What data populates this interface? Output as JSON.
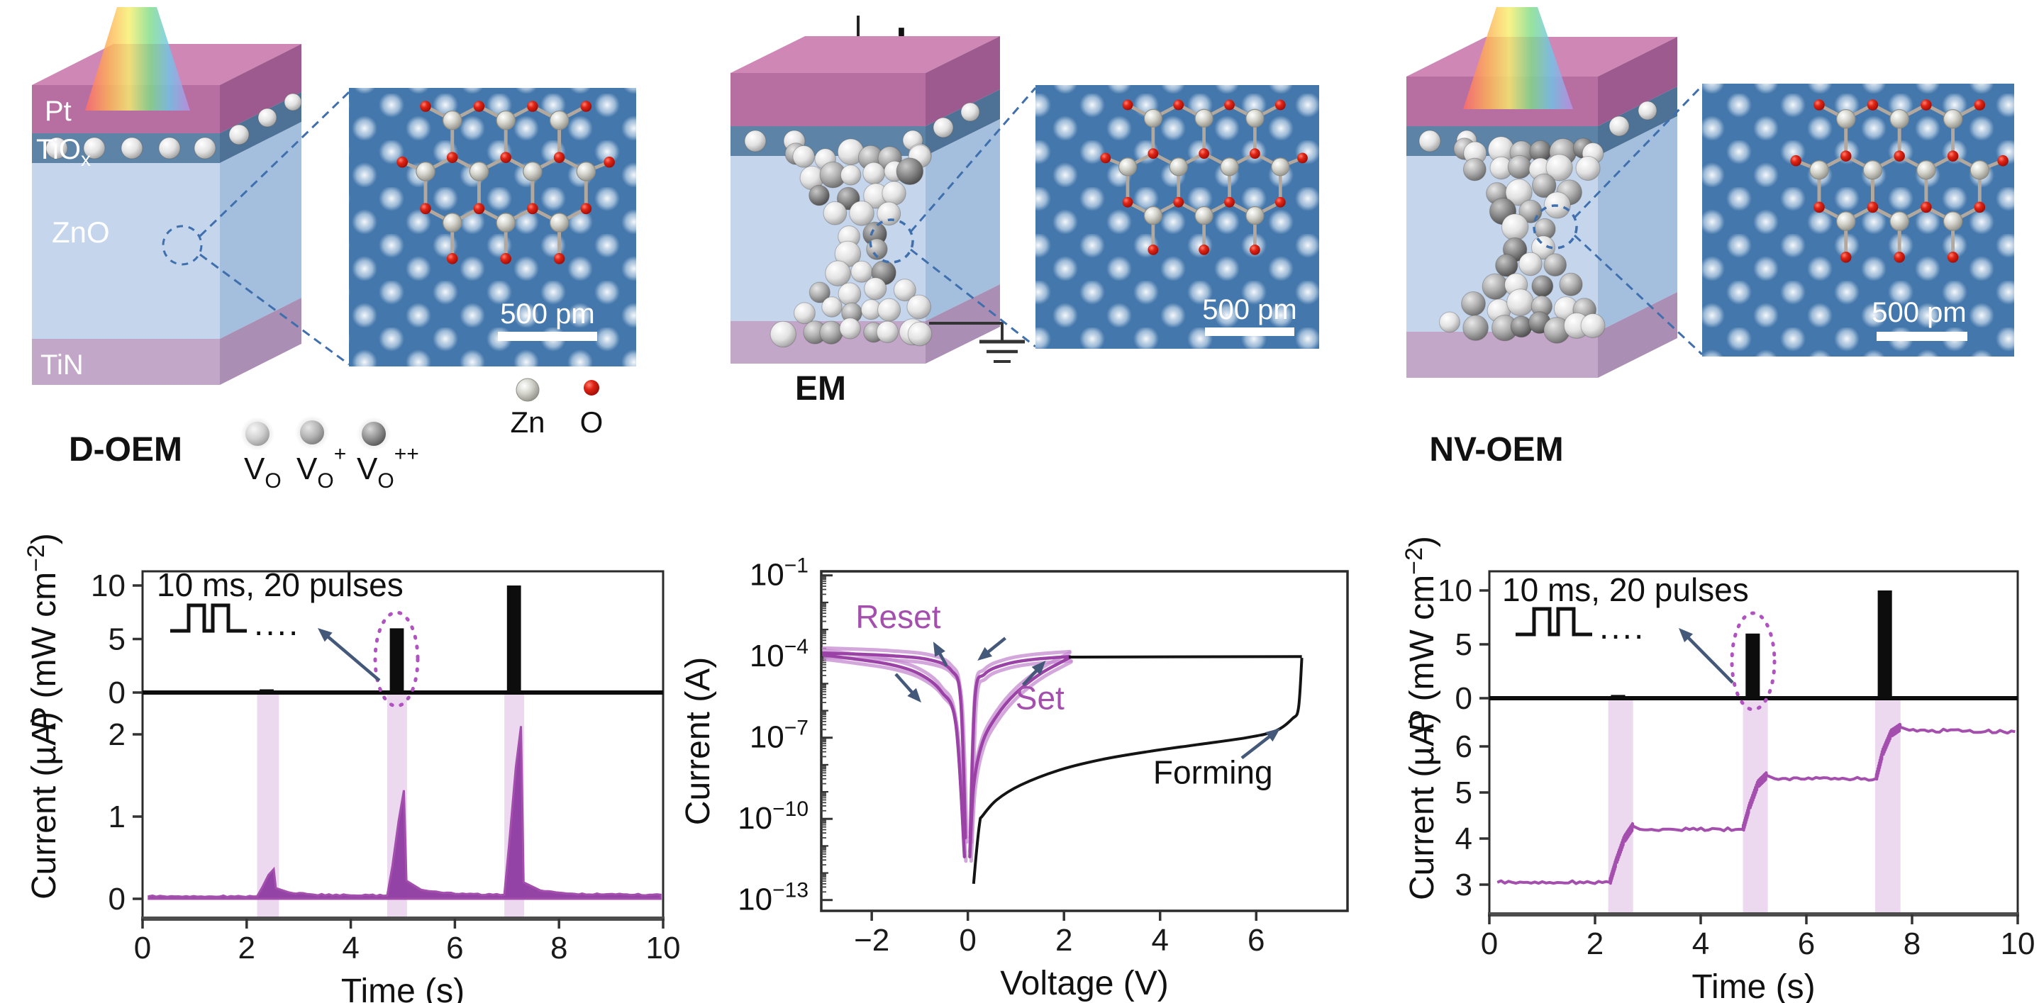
{
  "top_row": {
    "device_doem": {
      "label": "D-OEM",
      "layers": {
        "pt": "Pt",
        "tio_base": "TiO",
        "tio_sub": "x",
        "zno": "ZnO",
        "tin": "TiN"
      }
    },
    "device_em": {
      "label": "EM",
      "electrode_sign": "+"
    },
    "device_nvoem": {
      "label": "NV-OEM"
    },
    "insets": {
      "scale_label": "500 pm"
    },
    "vacancy_legend": [
      {
        "base": "V",
        "sub": "O",
        "sup": ""
      },
      {
        "base": "V",
        "sub": "O",
        "sup": "+"
      },
      {
        "base": "V",
        "sub": "O",
        "sup": "++"
      }
    ],
    "atom_legend": {
      "zn": "Zn",
      "o": "O"
    }
  },
  "chart_data": [
    {
      "id": "doem-pulse-response",
      "type": "area",
      "x": {
        "label": "Time (s)",
        "ticks": [
          0,
          2,
          4,
          6,
          8,
          10
        ],
        "range": [
          0,
          10
        ]
      },
      "power_panel": {
        "label_italic": "P",
        "label_main": " (mW cm",
        "label_sup": "−2",
        "label_close": ")",
        "ticks": [
          0,
          5,
          10
        ],
        "range": [
          0,
          11.8
        ],
        "annotation": "10 ms, 20 pulses",
        "pulse_dots": "....",
        "pulses": [
          {
            "t_start": 2.25,
            "t_end": 2.52,
            "power": 0.3
          },
          {
            "t_start": 4.75,
            "t_end": 5.02,
            "power": 6.0
          },
          {
            "t_start": 7.0,
            "t_end": 7.27,
            "power": 10.0
          }
        ]
      },
      "current_panel": {
        "label": "Current (µA)",
        "ticks": [
          0,
          1,
          2
        ],
        "range": [
          -0.25,
          2.5
        ],
        "fill_to": 0,
        "noise_amp": 0.01,
        "series": [
          [
            0.12,
            0.03
          ],
          [
            2.2,
            0.03
          ],
          [
            2.3,
            0.14
          ],
          [
            2.42,
            0.29
          ],
          [
            2.52,
            0.36
          ],
          [
            2.56,
            0.13
          ],
          [
            2.8,
            0.08
          ],
          [
            3.3,
            0.05
          ],
          [
            4.7,
            0.04
          ],
          [
            4.8,
            0.4
          ],
          [
            4.92,
            0.95
          ],
          [
            5.02,
            1.32
          ],
          [
            5.07,
            0.22
          ],
          [
            5.35,
            0.11
          ],
          [
            6.0,
            0.06
          ],
          [
            6.95,
            0.05
          ],
          [
            7.04,
            0.65
          ],
          [
            7.17,
            1.6
          ],
          [
            7.27,
            2.1
          ],
          [
            7.32,
            0.2
          ],
          [
            7.65,
            0.1
          ],
          [
            8.3,
            0.06
          ],
          [
            9.95,
            0.05
          ]
        ]
      },
      "light_bands": [
        [
          2.2,
          2.62
        ],
        [
          4.7,
          5.08
        ],
        [
          6.95,
          7.33
        ]
      ],
      "colors": {
        "trace": "#a44fae",
        "trace_fill": "#8e3aa0",
        "band": "#ecd9f0",
        "pulse_bar": "#0d0d0d",
        "ellipse": "#b052c0",
        "arrow": "#44597a"
      }
    },
    {
      "id": "em-iv-curve",
      "type": "line",
      "x": {
        "label": "Voltage (V)",
        "ticks": [
          -2,
          0,
          2,
          4,
          6
        ],
        "range": [
          -3.05,
          7.9
        ]
      },
      "y": {
        "label": "Current (A)",
        "tick_base": "10",
        "tick_exponents": [
          -1,
          -4,
          -7,
          -10,
          -13
        ],
        "range_exponents": [
          -13.4,
          -0.85
        ]
      },
      "annotations": {
        "reset": "Reset",
        "set": "Set",
        "forming": "Forming"
      },
      "series": {
        "forming": [
          [
            0.12,
            -12.4
          ],
          [
            0.18,
            -11.2
          ],
          [
            0.25,
            -10.1
          ],
          [
            0.3,
            -9.9
          ],
          [
            0.6,
            -9.3
          ],
          [
            1.1,
            -8.75
          ],
          [
            1.9,
            -8.2
          ],
          [
            2.8,
            -7.8
          ],
          [
            3.8,
            -7.5
          ],
          [
            4.8,
            -7.25
          ],
          [
            5.8,
            -7.0
          ],
          [
            6.4,
            -6.75
          ],
          [
            6.75,
            -6.3
          ],
          [
            6.88,
            -5.9
          ],
          [
            6.95,
            -4.05
          ]
        ],
        "forming_return": [
          [
            6.95,
            -4.0
          ],
          [
            2.1,
            -4.02
          ]
        ],
        "set_sweep": [
          [
            0.04,
            -11.4
          ],
          [
            0.12,
            -8.8
          ],
          [
            0.3,
            -7.2
          ],
          [
            0.6,
            -6.2
          ],
          [
            1.0,
            -5.35
          ],
          [
            1.5,
            -4.65
          ],
          [
            1.95,
            -4.2
          ],
          [
            2.12,
            -4.04
          ]
        ],
        "set_return": [
          [
            2.12,
            -4.0
          ],
          [
            1.4,
            -4.1
          ],
          [
            0.8,
            -4.28
          ],
          [
            0.35,
            -4.65
          ],
          [
            0.15,
            -5.5
          ],
          [
            0.05,
            -10.7
          ]
        ],
        "negative_sweep": [
          [
            -0.05,
            -10.7
          ],
          [
            -0.15,
            -5.6
          ],
          [
            -0.35,
            -4.5
          ],
          [
            -0.8,
            -4.12
          ],
          [
            -1.6,
            -3.97
          ],
          [
            -2.5,
            -3.9
          ],
          [
            -3.0,
            -3.87
          ]
        ],
        "negative_return": [
          [
            -3.0,
            -3.95
          ],
          [
            -2.4,
            -4.08
          ],
          [
            -1.6,
            -4.3
          ],
          [
            -1.0,
            -4.65
          ],
          [
            -0.55,
            -5.3
          ],
          [
            -0.25,
            -6.5
          ],
          [
            -0.07,
            -11.4
          ]
        ]
      },
      "direction_arrows": [
        {
          "from": [
            -0.44,
            -4.35
          ],
          "to": [
            -0.72,
            -3.45
          ]
        },
        {
          "from": [
            0.78,
            -3.32
          ],
          "to": [
            0.2,
            -4.15
          ]
        },
        {
          "from": [
            -1.5,
            -4.65
          ],
          "to": [
            -0.97,
            -5.7
          ]
        },
        {
          "from": [
            1.15,
            -5.05
          ],
          "to": [
            1.62,
            -4.15
          ]
        },
        {
          "from": [
            5.7,
            -7.75
          ],
          "to": [
            6.5,
            -6.65
          ]
        }
      ],
      "colors": {
        "loop_dark": "#9a42a6",
        "loop_light": "#c68ad0",
        "forming": "#141414",
        "label_purple": "#a44fae",
        "arrow": "#44597a"
      }
    },
    {
      "id": "nvoem-pulse-response",
      "type": "line",
      "x": {
        "label": "Time (s)",
        "ticks": [
          0,
          2,
          4,
          6,
          8,
          10
        ],
        "range": [
          0,
          10
        ]
      },
      "power_panel": {
        "label_italic": "P",
        "label_main": " (mW cm",
        "label_sup": "−2",
        "label_close": ")",
        "ticks": [
          0,
          5,
          10
        ],
        "range": [
          0,
          11.8
        ],
        "annotation": "10 ms, 20 pulses",
        "pulse_dots": "....",
        "pulses": [
          {
            "t_start": 2.3,
            "t_end": 2.57,
            "power": 0.3
          },
          {
            "t_start": 4.85,
            "t_end": 5.12,
            "power": 6.0
          },
          {
            "t_start": 7.35,
            "t_end": 7.62,
            "power": 10.0
          }
        ]
      },
      "current_panel": {
        "label": "Current (µA)",
        "ticks": [
          3,
          4,
          5,
          6
        ],
        "range": [
          2.5,
          6.9
        ],
        "noise_amp": 0.035,
        "rise_windows": [
          [
            2.28,
            2.72
          ],
          [
            4.8,
            5.25
          ],
          [
            7.32,
            7.78
          ]
        ],
        "series": [
          [
            0.15,
            3.05
          ],
          [
            2.28,
            3.05
          ],
          [
            2.4,
            3.5
          ],
          [
            2.55,
            3.98
          ],
          [
            2.72,
            4.27
          ],
          [
            2.85,
            4.2
          ],
          [
            4.8,
            4.2
          ],
          [
            4.92,
            4.68
          ],
          [
            5.08,
            5.18
          ],
          [
            5.25,
            5.37
          ],
          [
            5.4,
            5.3
          ],
          [
            7.32,
            5.3
          ],
          [
            7.44,
            5.85
          ],
          [
            7.6,
            6.28
          ],
          [
            7.78,
            6.42
          ],
          [
            7.95,
            6.35
          ],
          [
            9.95,
            6.32
          ]
        ]
      },
      "light_bands": [
        [
          2.25,
          2.72
        ],
        [
          4.8,
          5.27
        ],
        [
          7.3,
          7.78
        ]
      ],
      "colors": {
        "trace": "#a44fae",
        "trace_fill": "#8e3aa0",
        "band": "#ecd9f0",
        "pulse_bar": "#0d0d0d",
        "ellipse": "#b052c0",
        "arrow": "#44597a"
      }
    }
  ]
}
